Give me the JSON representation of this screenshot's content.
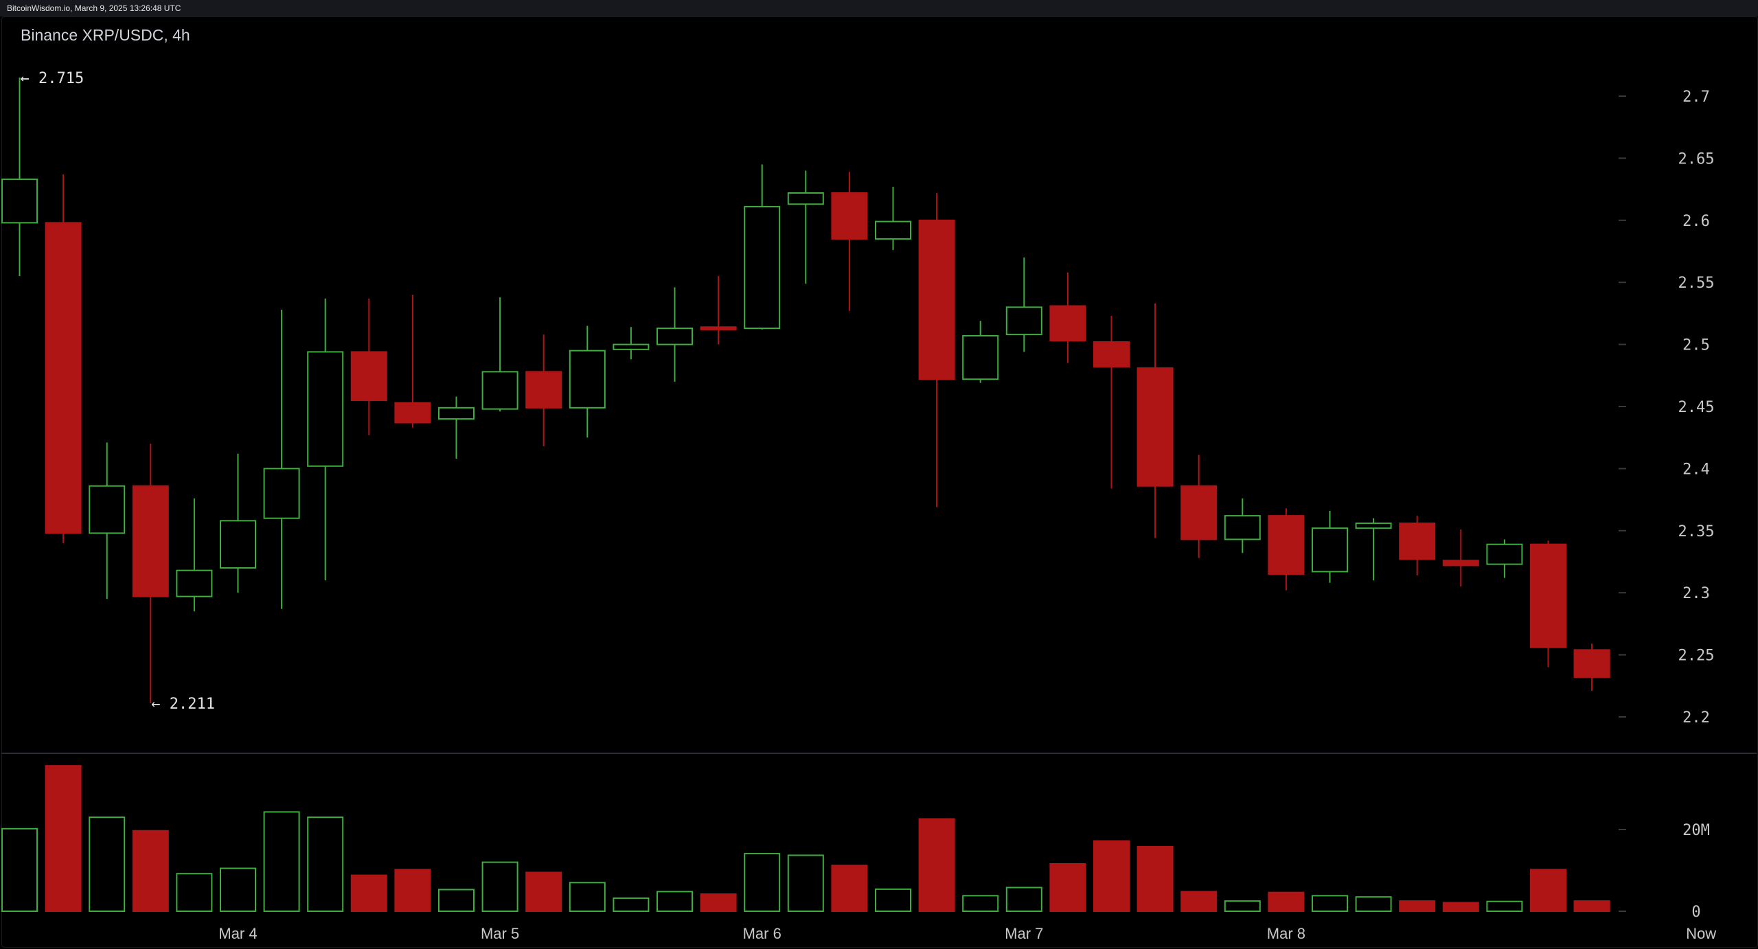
{
  "header": {
    "timestamp": "BitcoinWisdom.io, March 9, 2025 13:26:48 UTC",
    "title": "Binance XRP/USDC, 4h"
  },
  "colors": {
    "background": "#000000",
    "up": "#3fae3f",
    "down": "#b01515",
    "axis_text": "#c8c8c8",
    "grid_tick": "#3a3a3a"
  },
  "chart_data": [
    {
      "type": "candlestick",
      "title": "Binance XRP/USDC, 4h",
      "y_ticks": [
        "2.7",
        "2.65",
        "2.6",
        "2.55",
        "2.5",
        "2.45",
        "2.4",
        "2.35",
        "2.3",
        "2.25",
        "2.2"
      ],
      "ylim": [
        2.19,
        2.74
      ],
      "x_tick_labels": [
        {
          "index": 5,
          "label": "Mar 4"
        },
        {
          "index": 11,
          "label": "Mar 5"
        },
        {
          "index": 17,
          "label": "Mar 6"
        },
        {
          "index": 23,
          "label": "Mar 7"
        },
        {
          "index": 29,
          "label": "Mar 8"
        },
        {
          "index": 38.5,
          "label": "Now"
        }
      ],
      "annotations": [
        {
          "label": "← 2.715",
          "index": 0,
          "value": 2.715
        },
        {
          "label": "← 2.211",
          "index": 3,
          "value": 2.211
        }
      ],
      "candles": [
        {
          "o": 2.598,
          "h": 2.715,
          "l": 2.555,
          "c": 2.633
        },
        {
          "o": 2.598,
          "h": 2.637,
          "l": 2.34,
          "c": 2.348
        },
        {
          "o": 2.348,
          "h": 2.421,
          "l": 2.295,
          "c": 2.386
        },
        {
          "o": 2.386,
          "h": 2.42,
          "l": 2.211,
          "c": 2.297
        },
        {
          "o": 2.297,
          "h": 2.376,
          "l": 2.285,
          "c": 2.318
        },
        {
          "o": 2.32,
          "h": 2.412,
          "l": 2.3,
          "c": 2.358
        },
        {
          "o": 2.36,
          "h": 2.528,
          "l": 2.287,
          "c": 2.4
        },
        {
          "o": 2.402,
          "h": 2.537,
          "l": 2.31,
          "c": 2.494
        },
        {
          "o": 2.494,
          "h": 2.537,
          "l": 2.427,
          "c": 2.455
        },
        {
          "o": 2.453,
          "h": 2.54,
          "l": 2.433,
          "c": 2.437
        },
        {
          "o": 2.44,
          "h": 2.458,
          "l": 2.408,
          "c": 2.449
        },
        {
          "o": 2.448,
          "h": 2.538,
          "l": 2.446,
          "c": 2.478
        },
        {
          "o": 2.478,
          "h": 2.508,
          "l": 2.418,
          "c": 2.449
        },
        {
          "o": 2.449,
          "h": 2.515,
          "l": 2.425,
          "c": 2.495
        },
        {
          "o": 2.496,
          "h": 2.514,
          "l": 2.488,
          "c": 2.5
        },
        {
          "o": 2.5,
          "h": 2.546,
          "l": 2.47,
          "c": 2.513
        },
        {
          "o": 2.514,
          "h": 2.555,
          "l": 2.5,
          "c": 2.512
        },
        {
          "o": 2.513,
          "h": 2.645,
          "l": 2.512,
          "c": 2.611
        },
        {
          "o": 2.613,
          "h": 2.64,
          "l": 2.549,
          "c": 2.622
        },
        {
          "o": 2.622,
          "h": 2.639,
          "l": 2.527,
          "c": 2.585
        },
        {
          "o": 2.585,
          "h": 2.627,
          "l": 2.576,
          "c": 2.599
        },
        {
          "o": 2.6,
          "h": 2.622,
          "l": 2.369,
          "c": 2.472
        },
        {
          "o": 2.472,
          "h": 2.519,
          "l": 2.469,
          "c": 2.507
        },
        {
          "o": 2.508,
          "h": 2.57,
          "l": 2.494,
          "c": 2.53
        },
        {
          "o": 2.531,
          "h": 2.558,
          "l": 2.485,
          "c": 2.503
        },
        {
          "o": 2.502,
          "h": 2.523,
          "l": 2.384,
          "c": 2.482
        },
        {
          "o": 2.481,
          "h": 2.533,
          "l": 2.344,
          "c": 2.386
        },
        {
          "o": 2.386,
          "h": 2.411,
          "l": 2.328,
          "c": 2.343
        },
        {
          "o": 2.343,
          "h": 2.376,
          "l": 2.332,
          "c": 2.362
        },
        {
          "o": 2.362,
          "h": 2.368,
          "l": 2.302,
          "c": 2.315
        },
        {
          "o": 2.317,
          "h": 2.366,
          "l": 2.308,
          "c": 2.352
        },
        {
          "o": 2.352,
          "h": 2.36,
          "l": 2.31,
          "c": 2.356
        },
        {
          "o": 2.356,
          "h": 2.362,
          "l": 2.314,
          "c": 2.327
        },
        {
          "o": 2.326,
          "h": 2.351,
          "l": 2.305,
          "c": 2.322
        },
        {
          "o": 2.323,
          "h": 2.343,
          "l": 2.312,
          "c": 2.339
        },
        {
          "o": 2.339,
          "h": 2.342,
          "l": 2.24,
          "c": 2.256
        },
        {
          "o": 2.254,
          "h": 2.259,
          "l": 2.221,
          "c": 2.232
        }
      ],
      "volume": {
        "y_ticks": [
          {
            "label": "20M",
            "value": 20
          },
          {
            "label": "0",
            "value": 0
          }
        ],
        "unit": "M",
        "ylim": [
          0,
          36
        ],
        "values": [
          20.2,
          35.6,
          23.0,
          19.7,
          9.2,
          10.5,
          24.3,
          23.0,
          8.8,
          10.2,
          5.3,
          12.0,
          9.5,
          7.0,
          3.2,
          4.8,
          4.2,
          14.1,
          13.7,
          11.2,
          5.4,
          22.6,
          3.8,
          5.8,
          11.6,
          17.2,
          15.8,
          4.8,
          2.5,
          4.6,
          3.8,
          3.5,
          2.5,
          2.1,
          2.4,
          10.2,
          2.5
        ]
      }
    }
  ]
}
